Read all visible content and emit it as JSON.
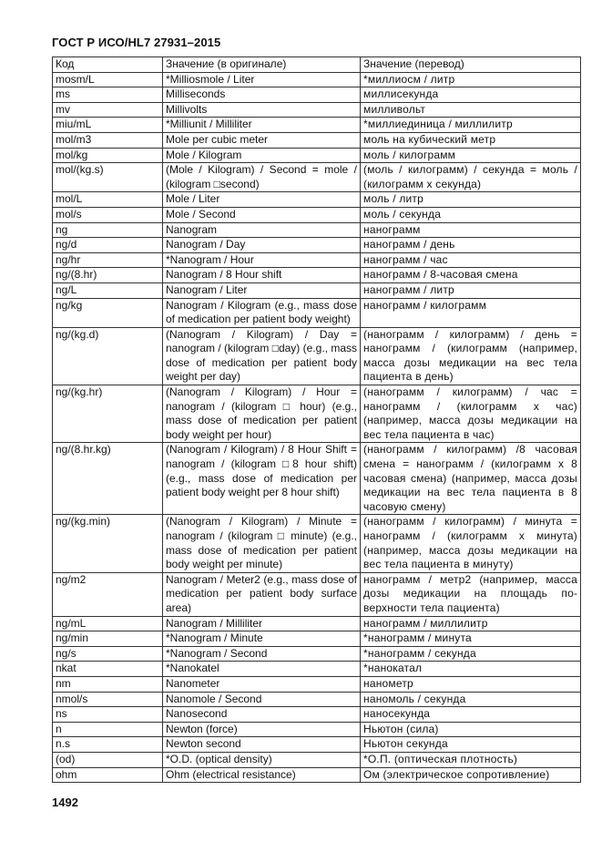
{
  "header": {
    "title": "ГОСТ Р ИСО/HL7 27931–2015"
  },
  "table": {
    "columns": [
      "Код",
      "Значение (в оригинале)",
      "Значение (перевод)"
    ],
    "rows": [
      [
        "mosm/L",
        "*Milliosmole / Liter",
        "*миллиосм / литр"
      ],
      [
        "ms",
        "Milliseconds",
        "миллисекунда"
      ],
      [
        "mv",
        "Millivolts",
        "милливольт"
      ],
      [
        "miu/mL",
        "*Milliunit / Milliliter",
        "*миллиединица / миллилитр"
      ],
      [
        "mol/m3",
        "Mole per cubic meter",
        "моль на кубический метр"
      ],
      [
        "mol/kg",
        "Mole / Kilogram",
        "моль / килограмм"
      ],
      [
        "mol/(kg.s)",
        "(Mole / Kilogram) / Second = mole / (kilogram □second)",
        "(моль / килограмм) / секунда = моль / (килограмм х секунда)"
      ],
      [
        "mol/L",
        "Mole / Liter",
        "моль / литр"
      ],
      [
        "mol/s",
        "Mole / Second",
        "моль / секунда"
      ],
      [
        "ng",
        "Nanogram",
        "нанограмм"
      ],
      [
        "ng/d",
        "Nanogram / Day",
        "нанограмм / день"
      ],
      [
        "ng/hr",
        "*Nanogram / Hour",
        "нанограмм / час"
      ],
      [
        "ng/(8.hr)",
        "Nanogram / 8 Hour shift",
        "нанограмм / 8-часовая смена"
      ],
      [
        "ng/L",
        "Nanogram / Liter",
        "нанограмм / литр"
      ],
      [
        "ng/kg",
        "Nanogram / Kilogram (e.g., mass dose of medication per patient body weight)",
        "нанограмм / килограмм"
      ],
      [
        "ng/(kg.d)",
        "(Nanogram / Kilogram) / Day = nanogram / (kilogram □day) (e.g., mass dose of medication per pa­tient body weight per day)",
        "(нанограмм / килограмм) / день = нанограмм / (килограмм (например, масса дозы медикации на вес тела пациента в день)"
      ],
      [
        "ng/(kg.hr)",
        "(Nanogram / Kilogram) / Hour = nanogram / (kilogram □ hour) (e.g., mass dose of medication per patient body weight per hour)",
        "(нанограмм / килограмм) / час = нанограмм / (килограмм х час) (например, масса дозы медикации на вес тела пациента в час)"
      ],
      [
        "ng/(8.hr.kg)",
        "(Nanogram / Kilogram) / 8 Hour Shift = nanogram / (kilogram □8 hour shift) (e.g., mass dose of medication per patient body weight per 8 hour shift)",
        "(нанограмм / килограмм) /8 часовая смена = нанограмм / (килограмм х 8 часовая смена) (например, масса дозы медикации на вес тела паци­ента в 8 часовую смену)"
      ],
      [
        "ng/(kg.min)",
        "(Nanogram / Kilogram) / Minute = nanogram / (kilogram □ minute) (e.g., mass dose of medication per patient body weight per mi­nute)",
        "(нанограмм / килограмм) / минута = нанограмм / (килограмм х минута) (например, масса дозы медикации на вес тела пациента в минуту)"
      ],
      [
        "ng/m2",
        "Nanogram / Meter2 (e.g., mass dose of medication per patient body surface area)",
        "нанограмм / метр2 (например, масса дозы медикации на площадь по­верхности тела пациента)"
      ],
      [
        "ng/mL",
        "Nanogram / Milliliter",
        "нанограмм / миллилитр"
      ],
      [
        "ng/min",
        "*Nanogram / Minute",
        "*нанограмм / минута"
      ],
      [
        "ng/s",
        "*Nanogram / Second",
        "*нанограмм / секунда"
      ],
      [
        "nkat",
        "*Nanokatel",
        "*нанокатал"
      ],
      [
        "nm",
        "Nanometer",
        "нанометр"
      ],
      [
        "nmol/s",
        "Nanomole / Second",
        "наномоль / секунда"
      ],
      [
        "ns",
        "Nanosecond",
        "наносекунда"
      ],
      [
        "n",
        "Newton (force)",
        "Ньютон (сила)"
      ],
      [
        "n.s",
        "Newton second",
        "Ньютон секунда"
      ],
      [
        "(od)",
        "*O.D. (optical density)",
        "*О.П. (оптическая плотность)"
      ],
      [
        "ohm",
        "Ohm (electrical resistance)",
        "Ом (электрическое сопротивление)"
      ]
    ]
  },
  "footer": {
    "page_number": "1492"
  }
}
